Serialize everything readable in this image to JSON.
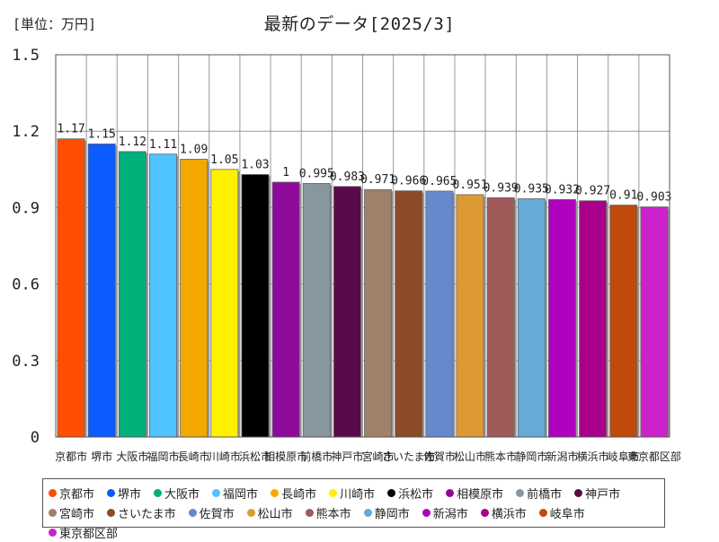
{
  "title": "最新のデータ[2025/3]",
  "unit_label": "[単位：万円]",
  "chart_data": {
    "type": "bar",
    "title": "最新のデータ[2025/3]",
    "ylabel": "[単位：万円]",
    "xlabel": "",
    "ylim": [
      0,
      1.5
    ],
    "yticks": [
      "0",
      "0.3",
      "0.6",
      "0.9",
      "1.2",
      "1.5"
    ],
    "grid": true,
    "legend_position": "bottom",
    "categories": [
      "京都市",
      "堺市",
      "大阪市",
      "福岡市",
      "長崎市",
      "川崎市",
      "浜松市",
      "相模原市",
      "前橋市",
      "神戸市",
      "宮崎市",
      "さいたま市",
      "佐賀市",
      "松山市",
      "熊本市",
      "静岡市",
      "新潟市",
      "横浜市",
      "岐阜市",
      "東京都区部"
    ],
    "values": [
      1.17,
      1.15,
      1.12,
      1.11,
      1.09,
      1.05,
      1.03,
      1,
      0.995,
      0.983,
      0.971,
      0.966,
      0.965,
      0.951,
      0.939,
      0.935,
      0.932,
      0.927,
      0.91,
      0.903
    ],
    "value_labels": [
      "1.17",
      "1.15",
      "1.12",
      "1.11",
      "1.09",
      "1.05",
      "1.03",
      "1",
      "0.995",
      "0.983",
      "0.971",
      "0.966",
      "0.965",
      "0.951",
      "0.939",
      "0.935",
      "0.932",
      "0.927",
      "0.91",
      "0.903"
    ],
    "colors": [
      "#ff4e00",
      "#0a5cff",
      "#00b07a",
      "#4fc3ff",
      "#f5a800",
      "#ffef00",
      "#000000",
      "#8e0a9b",
      "#8896a0",
      "#5a0a4c",
      "#a08068",
      "#8c4a28",
      "#6688cc",
      "#dd9933",
      "#a05a5a",
      "#66aad8",
      "#b000c0",
      "#a8008a",
      "#c04a0a",
      "#cc22cc"
    ]
  }
}
